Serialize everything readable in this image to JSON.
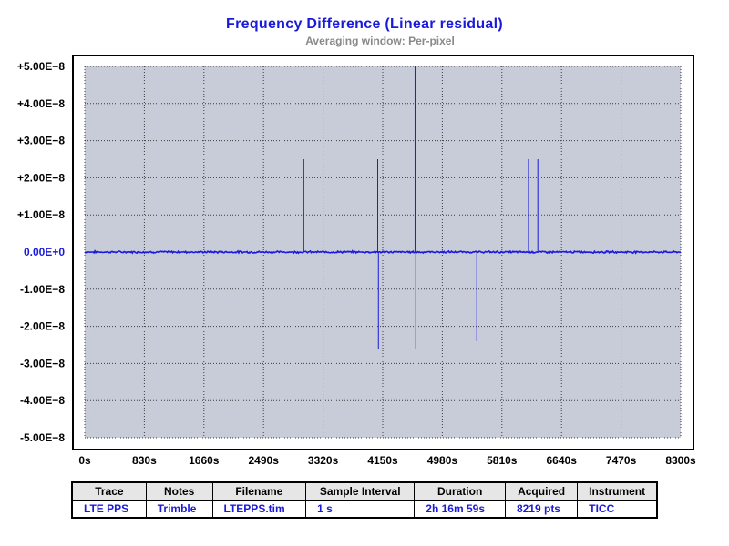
{
  "header": {
    "title": "Frequency Difference  (Linear residual)",
    "subtitle": "Averaging window: Per-pixel"
  },
  "chart_data": {
    "type": "line",
    "title": "Frequency Difference  (Linear residual)",
    "subtitle": "Averaging window: Per-pixel",
    "xlabel": "",
    "ylabel": "",
    "xlim": [
      0,
      8300
    ],
    "ylim": [
      -5e-08,
      5e-08
    ],
    "x_ticks": [
      "0s",
      "830s",
      "1660s",
      "2490s",
      "3320s",
      "4150s",
      "4980s",
      "5810s",
      "6640s",
      "7470s",
      "8300s"
    ],
    "y_ticks": [
      "+5.00E−8",
      "+4.00E−8",
      "+3.00E−8",
      "+2.00E−8",
      "+1.00E−8",
      "0.00E+0",
      "-1.00E−8",
      "-2.00E−8",
      "-3.00E−8",
      "-4.00E−8",
      "-5.00E−8"
    ],
    "grid": true,
    "series_color": "#1a1adc",
    "plot_background": "#c8ccd8",
    "baseline_noise": 2e-10,
    "spikes": [
      {
        "x": 3050,
        "y": 2.5e-08
      },
      {
        "x": 4080,
        "y": 2.5e-08
      },
      {
        "x": 4090,
        "y": -2.6e-08
      },
      {
        "x": 4600,
        "y": 5e-08
      },
      {
        "x": 4610,
        "y": -2.6e-08
      },
      {
        "x": 5460,
        "y": -2.4e-08
      },
      {
        "x": 6180,
        "y": 2.5e-08
      },
      {
        "x": 6310,
        "y": 2.5e-08
      }
    ]
  },
  "info_table": {
    "headers": [
      "Trace",
      "Notes",
      "Filename",
      "Sample Interval",
      "Duration",
      "Acquired",
      "Instrument"
    ],
    "row": [
      "LTE PPS",
      "Trimble",
      "LTEPPS.tim",
      "1 s",
      "2h 16m 59s",
      "8219 pts",
      "TICC"
    ]
  }
}
